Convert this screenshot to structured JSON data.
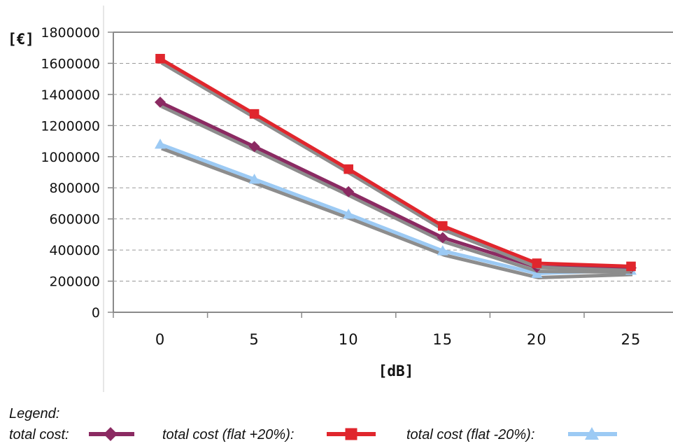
{
  "chart_data": {
    "type": "line",
    "title": "",
    "ylabel": "[€]",
    "xlabel": "[dB]",
    "x": [
      0,
      5,
      10,
      15,
      20,
      25
    ],
    "ylim": [
      0,
      1800000
    ],
    "yticks": [
      "0",
      "200000",
      "400000",
      "600000",
      "800000",
      "1000000",
      "1200000",
      "1400000",
      "1600000",
      "1800000"
    ],
    "xticks": [
      "0",
      "5",
      "10",
      "15",
      "20",
      "25"
    ],
    "grid": "horizontal-dashed",
    "legend": {
      "heading": "Legend:",
      "placement": "bottom-left",
      "entries": [
        "total cost:",
        "total cost (flat +20%):",
        "total cost (flat -20%):"
      ]
    },
    "series": [
      {
        "name": "total cost:",
        "color": "#8b2a62",
        "marker": "diamond",
        "values": [
          1350000,
          1065000,
          775000,
          480000,
          290000,
          285000
        ]
      },
      {
        "name": "total cost (flat +20%):",
        "color": "#e0262d",
        "marker": "square",
        "values": [
          1630000,
          1275000,
          920000,
          555000,
          315000,
          295000
        ]
      },
      {
        "name": "total cost (flat -20%):",
        "color": "#9ccaf4",
        "marker": "triangle",
        "values": [
          1080000,
          855000,
          630000,
          395000,
          250000,
          270000
        ]
      }
    ]
  }
}
